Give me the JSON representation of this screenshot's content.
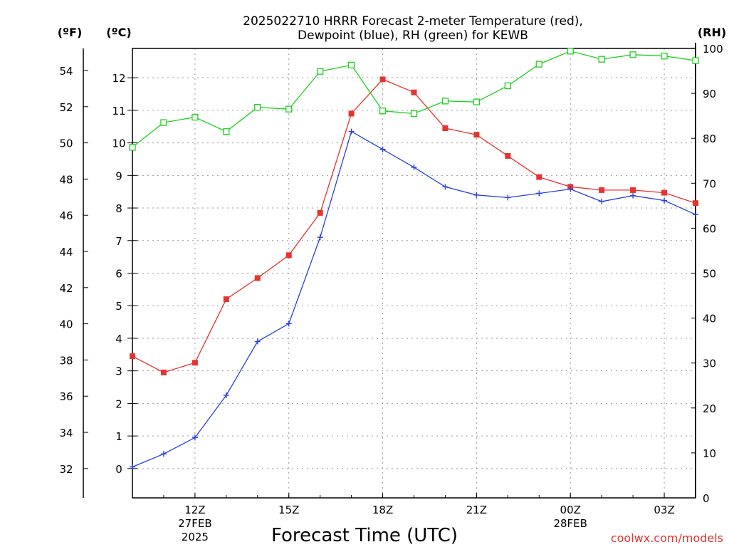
{
  "chart_data": {
    "type": "line",
    "title": "2025022710 HRRR Forecast 2-meter Temperature (red),",
    "subtitle": "Dewpoint (blue), RH (green) for KEWB",
    "xlabel": "Forecast Time (UTC)",
    "units": {
      "fahrenheit": "(ºF)",
      "celsius": "(ºC)",
      "rh": "(RH)"
    },
    "x": [
      "10Z",
      "11Z",
      "12Z",
      "13Z",
      "14Z",
      "15Z",
      "16Z",
      "17Z",
      "18Z",
      "19Z",
      "20Z",
      "21Z",
      "22Z",
      "23Z",
      "00Z",
      "01Z",
      "02Z",
      "03Z",
      "04Z"
    ],
    "x_ticks": [
      {
        "label": "12Z",
        "date": "27FEB",
        "year": "2025"
      },
      {
        "label": "15Z",
        "date": "",
        "year": ""
      },
      {
        "label": "18Z",
        "date": "",
        "year": ""
      },
      {
        "label": "21Z",
        "date": "",
        "year": ""
      },
      {
        "label": "00Z",
        "date": "28FEB",
        "year": ""
      },
      {
        "label": "03Z",
        "date": "",
        "year": ""
      }
    ],
    "x_tick_index": [
      2,
      5,
      8,
      11,
      14,
      17
    ],
    "y_left_celsius": {
      "ticks": [
        "0",
        "1",
        "2",
        "3",
        "4",
        "5",
        "6",
        "7",
        "8",
        "9",
        "10",
        "11",
        "12"
      ],
      "ylim": [
        -0.9,
        12.9
      ]
    },
    "y_left_fahrenheit": {
      "ticks": [
        "32",
        "34",
        "36",
        "38",
        "40",
        "42",
        "44",
        "46",
        "48",
        "50",
        "52",
        "54"
      ]
    },
    "y_right_rh": {
      "ticks": [
        "0",
        "10",
        "20",
        "30",
        "40",
        "50",
        "60",
        "70",
        "80",
        "90",
        "100"
      ],
      "ylim": [
        0,
        100
      ]
    },
    "series": [
      {
        "name": "Temperature",
        "axis": "celsius",
        "color": "#e8322e",
        "marker": "filled-square",
        "values": [
          3.45,
          2.95,
          3.25,
          5.2,
          5.85,
          6.55,
          7.85,
          10.9,
          11.95,
          11.55,
          10.45,
          10.25,
          9.6,
          8.95,
          8.65,
          8.55,
          8.55,
          8.47,
          8.15
        ]
      },
      {
        "name": "Dewpoint",
        "axis": "celsius",
        "color": "#2b3fe0",
        "marker": "plus",
        "values": [
          0.05,
          0.45,
          0.95,
          2.25,
          3.9,
          4.45,
          7.1,
          10.35,
          9.8,
          9.25,
          8.65,
          8.4,
          8.32,
          8.45,
          8.58,
          8.2,
          8.38,
          8.23,
          7.8
        ]
      },
      {
        "name": "Relative Humidity",
        "axis": "rh",
        "color": "#1ed01e",
        "marker": "open-square",
        "values": [
          78,
          83.5,
          84.7,
          81.5,
          86.9,
          86.5,
          94.9,
          96.3,
          86.1,
          85.5,
          88.3,
          88.1,
          91.7,
          96.5,
          99.4,
          97.6,
          98.6,
          98.3,
          97.3
        ]
      }
    ],
    "grid": true,
    "grid_style": "dotted"
  },
  "credit": "coolwx.com/models"
}
